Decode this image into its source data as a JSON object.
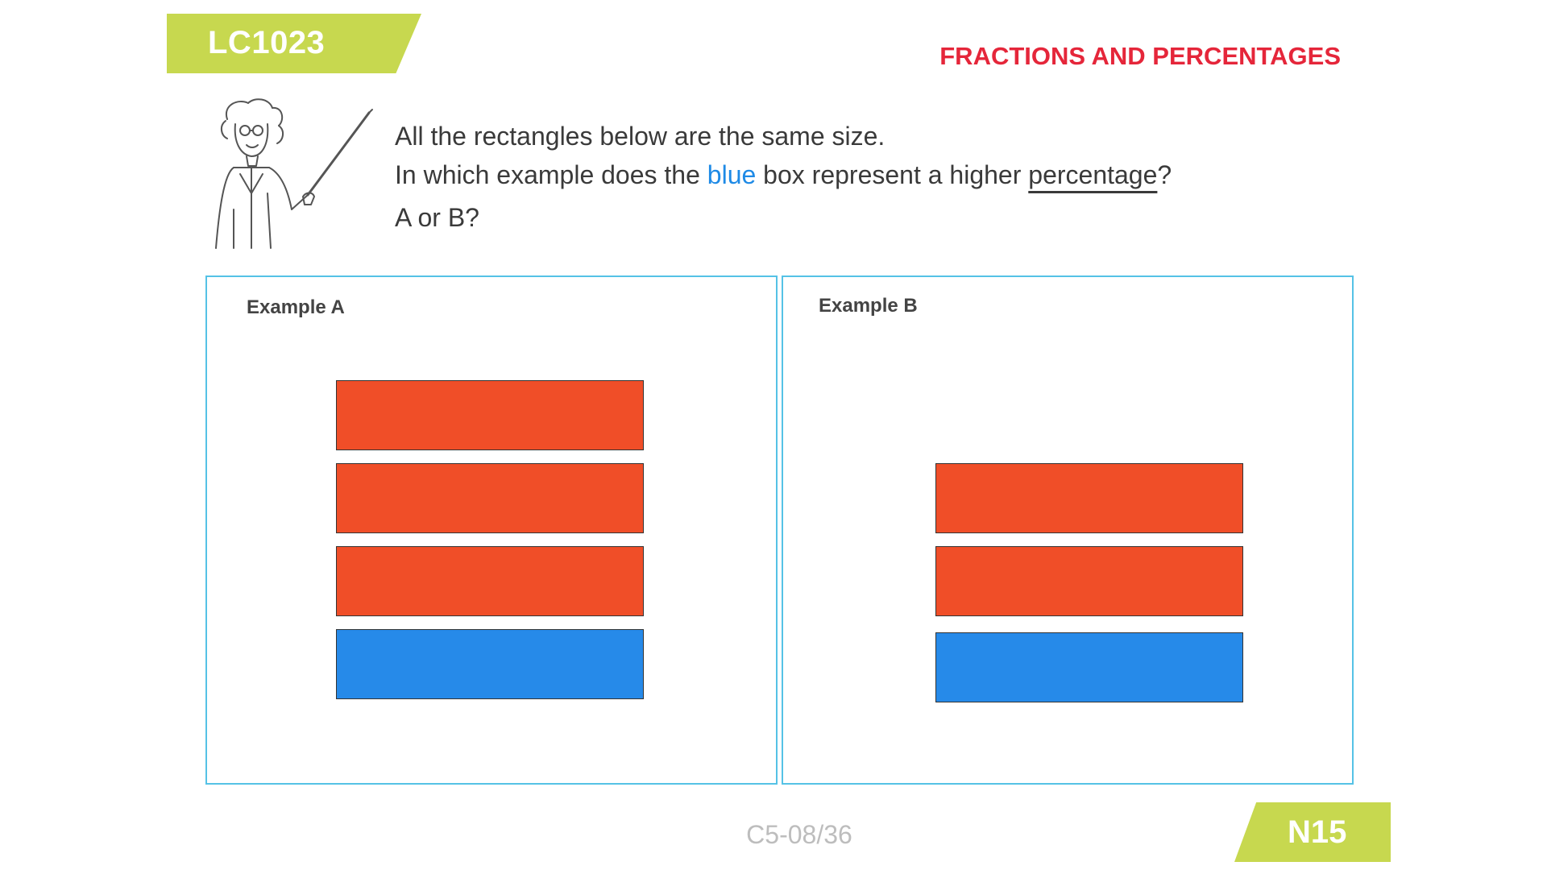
{
  "header": {
    "code": "LC1023",
    "topic": "FRACTIONS AND PERCENTAGES"
  },
  "question": {
    "line1": "All the rectangles below are the same size.",
    "line2_before": "In which example does the ",
    "line2_highlight": "blue",
    "line2_middle": " box represent a higher ",
    "line2_underlined": "percentage",
    "line2_after": "?",
    "line3": "A or B?"
  },
  "examples": [
    {
      "label": "Example A",
      "boxes": [
        "red",
        "red",
        "red",
        "blue"
      ]
    },
    {
      "label": "Example B",
      "boxes": [
        "red",
        "red",
        "blue"
      ]
    }
  ],
  "colors": {
    "red": "#f04e28",
    "blue": "#268ae9",
    "accent_green": "#c7d84f",
    "panel_border": "#55c2e6",
    "topic_red": "#e5263a"
  },
  "illustration": "teacher-with-pointer-icon",
  "footer": {
    "page": "C5-08/36",
    "level": "N15"
  }
}
